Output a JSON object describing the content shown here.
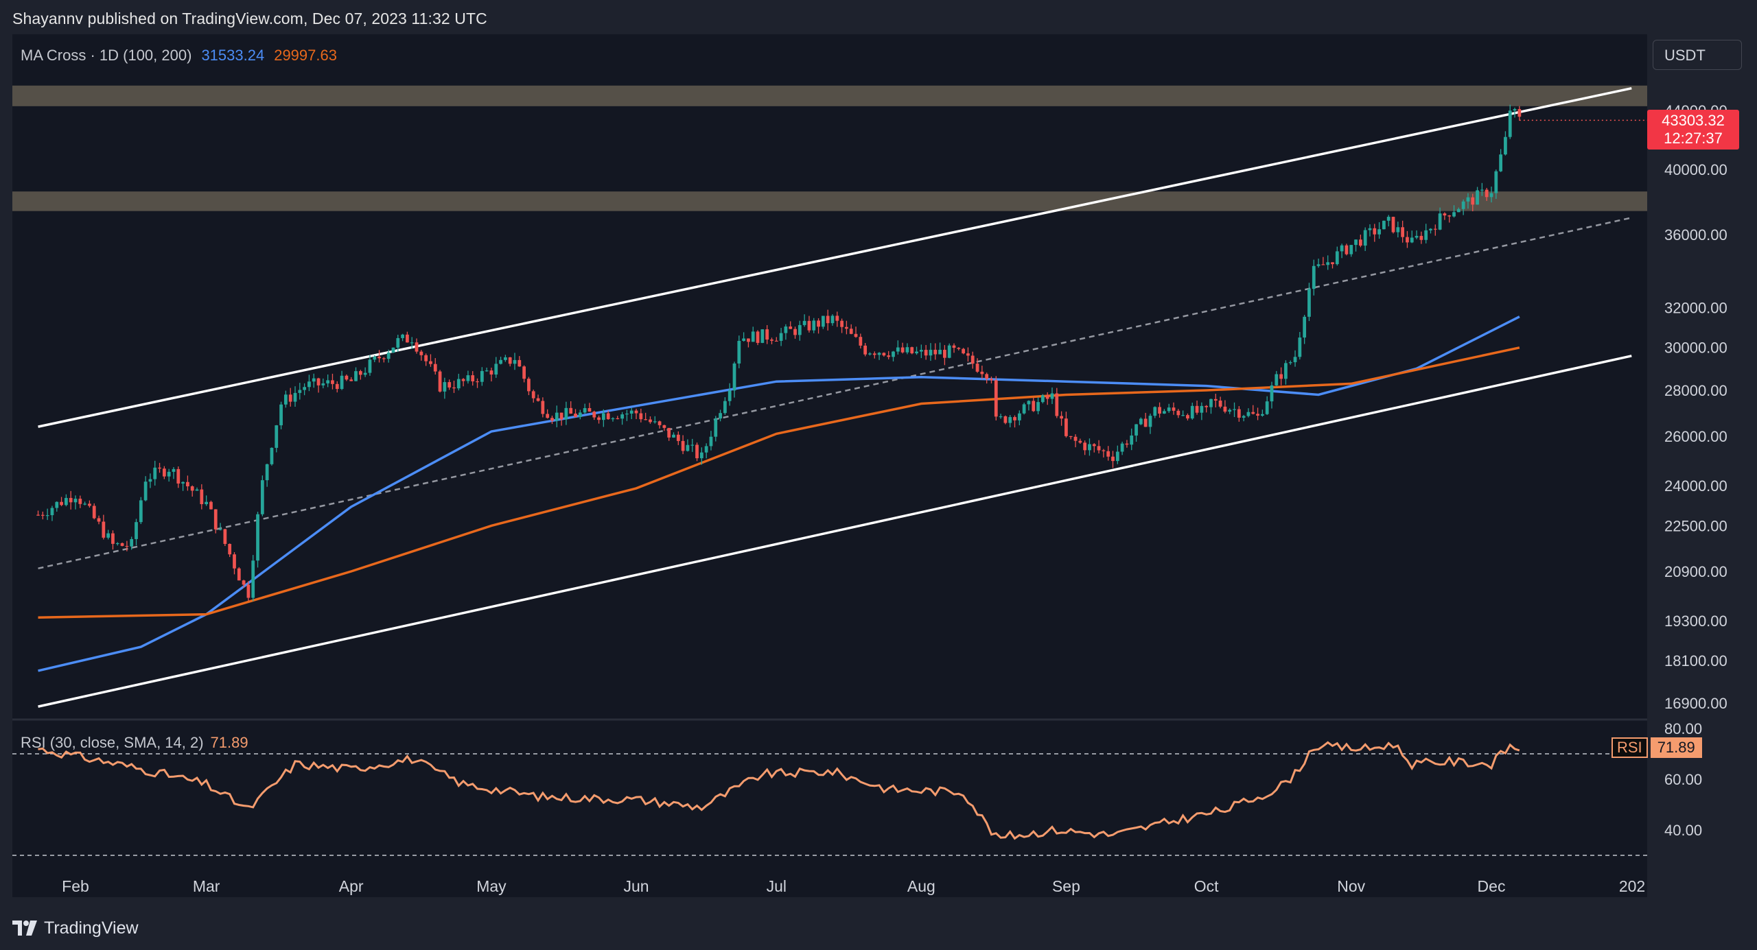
{
  "header": {
    "publisher_line": "Shayannv published on TradingView.com, Dec 07, 2023 11:32 UTC"
  },
  "indicator_legend": {
    "label": "MA Cross · 1D (100, 200)",
    "ma100_value": "31533.24",
    "ma200_value": "29997.63",
    "ma100_color": "#4c8df6",
    "ma200_color": "#e8681c"
  },
  "rsi_legend": {
    "label": "RSI (30, close, SMA, 14, 2)",
    "value": "71.89",
    "color": "#f59c6e"
  },
  "currency_button": "USDT",
  "last_price": {
    "price": "43303.32",
    "countdown": "12:27:37",
    "color": "#f23645"
  },
  "rsi_badge": {
    "key": "RSI",
    "value": "71.89"
  },
  "brand": {
    "name": "TradingView",
    "icon": "tradingview-logo-icon"
  },
  "colors": {
    "background": "#131722",
    "up_candle": "#26a69a",
    "down_candle": "#ef5350",
    "channel_line": "#ffffff",
    "zone_fill": "#5d564d"
  },
  "chart_data": {
    "type": "candlestick",
    "title": "",
    "price_axis_ticks": [
      "44000.00",
      "40000.00",
      "36000.00",
      "32000.00",
      "30000.00",
      "28000.00",
      "26000.00",
      "24000.00",
      "22500.00",
      "20900.00",
      "19300.00",
      "18100.00",
      "16900.00"
    ],
    "log_scale": true,
    "rsi_axis_ticks": [
      "80.00",
      "60.00",
      "40.00"
    ],
    "rsi_levels": [
      70,
      30
    ],
    "time_axis_ticks": [
      "Feb",
      "Mar",
      "Apr",
      "May",
      "Jun",
      "Jul",
      "Aug",
      "Sep",
      "Oct",
      "Nov",
      "Dec",
      "202"
    ],
    "price_series_close": [
      [
        "2023-01-24",
        22900
      ],
      [
        "2023-02-01",
        23700
      ],
      [
        "2023-02-09",
        21800
      ],
      [
        "2023-02-13",
        21800
      ],
      [
        "2023-02-16",
        24300
      ],
      [
        "2023-02-21",
        24700
      ],
      [
        "2023-03-01",
        23300
      ],
      [
        "2023-03-09",
        20400
      ],
      [
        "2023-03-10",
        20200
      ],
      [
        "2023-03-13",
        24100
      ],
      [
        "2023-03-17",
        27400
      ],
      [
        "2023-03-22",
        28200
      ],
      [
        "2023-04-01",
        28400
      ],
      [
        "2023-04-11",
        30300
      ],
      [
        "2023-04-14",
        30500
      ],
      [
        "2023-04-20",
        28200
      ],
      [
        "2023-04-26",
        28400
      ],
      [
        "2023-05-06",
        29500
      ],
      [
        "2023-05-10",
        27600
      ],
      [
        "2023-05-14",
        26900
      ],
      [
        "2023-06-01",
        27000
      ],
      [
        "2023-06-10",
        25800
      ],
      [
        "2023-06-15",
        25100
      ],
      [
        "2023-06-21",
        28300
      ],
      [
        "2023-06-23",
        30500
      ],
      [
        "2023-07-01",
        30600
      ],
      [
        "2023-07-13",
        31400
      ],
      [
        "2023-07-20",
        29900
      ],
      [
        "2023-08-01",
        29700
      ],
      [
        "2023-08-08",
        29800
      ],
      [
        "2023-08-16",
        28700
      ],
      [
        "2023-08-17",
        26600
      ],
      [
        "2023-08-29",
        27700
      ],
      [
        "2023-09-01",
        25900
      ],
      [
        "2023-09-11",
        25200
      ],
      [
        "2023-09-20",
        27100
      ],
      [
        "2023-10-01",
        27000
      ],
      [
        "2023-10-02",
        27500
      ],
      [
        "2023-10-12",
        26800
      ],
      [
        "2023-10-16",
        28500
      ],
      [
        "2023-10-20",
        29600
      ],
      [
        "2023-10-23",
        33000
      ],
      [
        "2023-10-24",
        33900
      ],
      [
        "2023-11-01",
        35400
      ],
      [
        "2023-11-09",
        36700
      ],
      [
        "2023-11-14",
        35500
      ],
      [
        "2023-11-22",
        37400
      ],
      [
        "2023-12-01",
        38700
      ],
      [
        "2023-12-04",
        41900
      ],
      [
        "2023-12-05",
        44100
      ],
      [
        "2023-12-07",
        43303.32
      ]
    ],
    "series": [
      {
        "name": "MA 100",
        "color": "#4c8df6",
        "points": [
          [
            "2023-01-24",
            17800
          ],
          [
            "2023-02-15",
            18500
          ],
          [
            "2023-03-01",
            19500
          ],
          [
            "2023-04-01",
            23200
          ],
          [
            "2023-05-01",
            26200
          ],
          [
            "2023-06-01",
            27300
          ],
          [
            "2023-07-01",
            28400
          ],
          [
            "2023-08-01",
            28600
          ],
          [
            "2023-09-01",
            28400
          ],
          [
            "2023-10-01",
            28200
          ],
          [
            "2023-10-25",
            27800
          ],
          [
            "2023-11-15",
            29000
          ],
          [
            "2023-12-07",
            31533.24
          ]
        ]
      },
      {
        "name": "MA 200",
        "color": "#e8681c",
        "points": [
          [
            "2023-01-24",
            19400
          ],
          [
            "2023-03-01",
            19500
          ],
          [
            "2023-04-01",
            20900
          ],
          [
            "2023-05-01",
            22500
          ],
          [
            "2023-06-01",
            23900
          ],
          [
            "2023-07-01",
            26100
          ],
          [
            "2023-08-01",
            27400
          ],
          [
            "2023-09-01",
            27800
          ],
          [
            "2023-10-01",
            28000
          ],
          [
            "2023-11-01",
            28300
          ],
          [
            "2023-12-07",
            29997.63
          ]
        ]
      }
    ],
    "rsi_series": [
      [
        "2023-01-24",
        72
      ],
      [
        "2023-02-10",
        66
      ],
      [
        "2023-02-20",
        62
      ],
      [
        "2023-03-01",
        58
      ],
      [
        "2023-03-10",
        48
      ],
      [
        "2023-03-20",
        66
      ],
      [
        "2023-04-01",
        64
      ],
      [
        "2023-04-14",
        68
      ],
      [
        "2023-04-25",
        58
      ],
      [
        "2023-05-12",
        53
      ],
      [
        "2023-06-01",
        52
      ],
      [
        "2023-06-15",
        49
      ],
      [
        "2023-06-28",
        62
      ],
      [
        "2023-07-13",
        63
      ],
      [
        "2023-07-25",
        56
      ],
      [
        "2023-08-10",
        55
      ],
      [
        "2023-08-17",
        37
      ],
      [
        "2023-08-30",
        40
      ],
      [
        "2023-09-11",
        38
      ],
      [
        "2023-09-25",
        44
      ],
      [
        "2023-10-05",
        48
      ],
      [
        "2023-10-16",
        56
      ],
      [
        "2023-10-20",
        62
      ],
      [
        "2023-10-24",
        73
      ],
      [
        "2023-11-05",
        72
      ],
      [
        "2023-11-10",
        74
      ],
      [
        "2023-11-14",
        66
      ],
      [
        "2023-11-22",
        67
      ],
      [
        "2023-12-01",
        66
      ],
      [
        "2023-12-05",
        73
      ],
      [
        "2023-12-07",
        71.89
      ]
    ],
    "zones": [
      {
        "from": 44300,
        "to": 45800
      },
      {
        "from": 37400,
        "to": 38600
      }
    ],
    "channel": {
      "upper": [
        [
          "2023-01-24",
          26400
        ],
        [
          "2023-12-31",
          45600
        ]
      ],
      "lower": [
        [
          "2023-01-24",
          16800
        ],
        [
          "2023-12-31",
          29600
        ]
      ],
      "middle_dashed": [
        [
          "2023-01-24",
          21000
        ],
        [
          "2023-12-31",
          37000
        ]
      ]
    },
    "grid": false,
    "legend_placement": "top-left"
  }
}
